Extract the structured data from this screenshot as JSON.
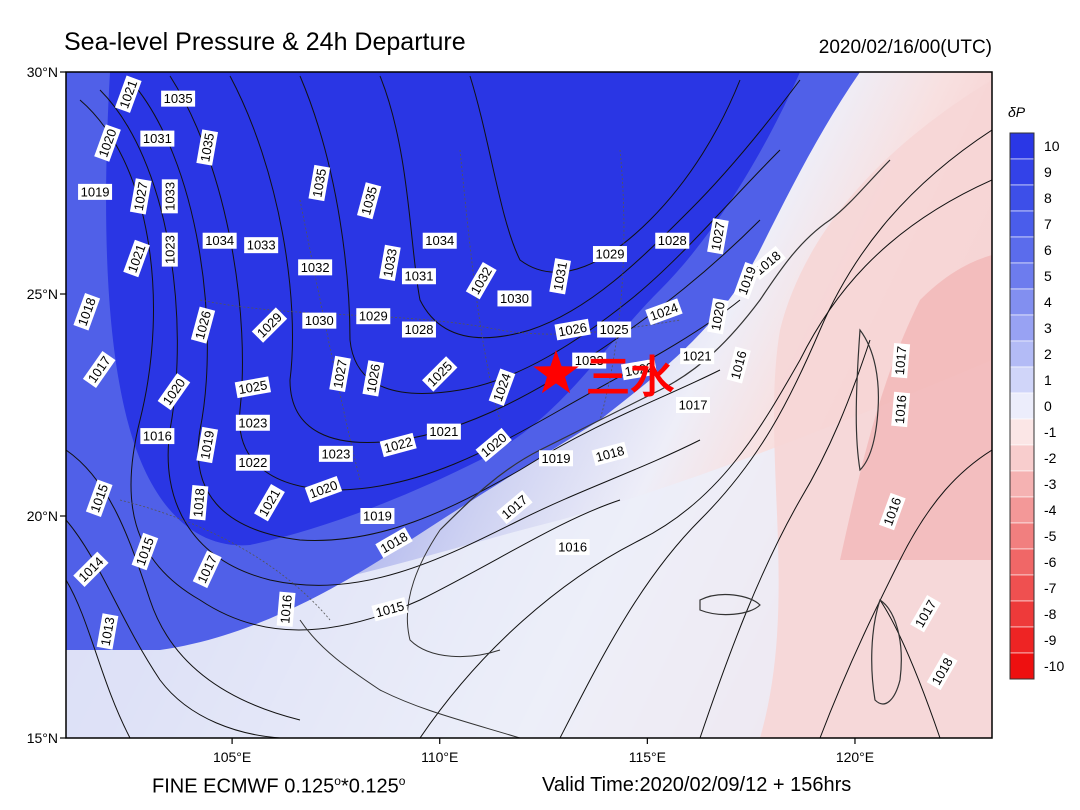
{
  "header": {
    "title": "Sea-level Pressure & 24h Departure",
    "datetime": "2020/02/16/00(UTC)"
  },
  "footer": {
    "model": "FINE ECMWF 0.125",
    "deg1": "o",
    "sep": "*0.125",
    "deg2": "o",
    "valid_time": "Valid Time:2020/02/09/12 + 156hrs"
  },
  "map": {
    "lon_range": [
      101,
      123.3
    ],
    "lat_range": [
      15,
      30
    ],
    "lat_ticks": [
      {
        "lat": 30,
        "label": "30°N"
      },
      {
        "lat": 25,
        "label": "25°N"
      },
      {
        "lat": 20,
        "label": "20°N"
      },
      {
        "lat": 15,
        "label": "15°N"
      }
    ],
    "lon_ticks": [
      {
        "lon": 105,
        "label": "105°E"
      },
      {
        "lon": 110,
        "label": "110°E"
      },
      {
        "lon": 115,
        "label": "115°E"
      },
      {
        "lon": 120,
        "label": "120°E"
      }
    ],
    "marker": {
      "lon": 112.8,
      "lat": 23.2,
      "label": "三水",
      "color": "#ff0000",
      "icon": "star-icon"
    },
    "isobar_labels": [
      {
        "t": "1021",
        "lon": 102.5,
        "lat": 29.5,
        "rot": -70
      },
      {
        "t": "1035",
        "lon": 103.7,
        "lat": 29.4,
        "rot": 0
      },
      {
        "t": "1020",
        "lon": 102.0,
        "lat": 28.4,
        "rot": -70
      },
      {
        "t": "1031",
        "lon": 103.2,
        "lat": 28.5,
        "rot": 0
      },
      {
        "t": "1035",
        "lon": 104.4,
        "lat": 28.3,
        "rot": -80
      },
      {
        "t": "1019",
        "lon": 101.7,
        "lat": 27.3,
        "rot": 0
      },
      {
        "t": "1027",
        "lon": 102.8,
        "lat": 27.2,
        "rot": -80
      },
      {
        "t": "1033",
        "lon": 103.5,
        "lat": 27.2,
        "rot": -90
      },
      {
        "t": "1035",
        "lon": 107.1,
        "lat": 27.5,
        "rot": -80
      },
      {
        "t": "1035",
        "lon": 108.3,
        "lat": 27.1,
        "rot": -75
      },
      {
        "t": "1023",
        "lon": 103.5,
        "lat": 26.0,
        "rot": -90
      },
      {
        "t": "1034",
        "lon": 104.7,
        "lat": 26.2,
        "rot": 0
      },
      {
        "t": "1033",
        "lon": 105.7,
        "lat": 26.1,
        "rot": 0
      },
      {
        "t": "1034",
        "lon": 110.0,
        "lat": 26.2,
        "rot": 0
      },
      {
        "t": "1021",
        "lon": 102.7,
        "lat": 25.8,
        "rot": -70
      },
      {
        "t": "1032",
        "lon": 107.0,
        "lat": 25.6,
        "rot": 0
      },
      {
        "t": "1033",
        "lon": 108.8,
        "lat": 25.7,
        "rot": -80
      },
      {
        "t": "1031",
        "lon": 109.5,
        "lat": 25.4,
        "rot": 0
      },
      {
        "t": "1032",
        "lon": 111.0,
        "lat": 25.3,
        "rot": -60
      },
      {
        "t": "1031",
        "lon": 112.9,
        "lat": 25.4,
        "rot": -80
      },
      {
        "t": "1029",
        "lon": 114.1,
        "lat": 25.9,
        "rot": 0
      },
      {
        "t": "1028",
        "lon": 115.6,
        "lat": 26.2,
        "rot": 0
      },
      {
        "t": "1027",
        "lon": 116.7,
        "lat": 26.3,
        "rot": -80
      },
      {
        "t": "1018",
        "lon": 117.9,
        "lat": 25.7,
        "rot": -40
      },
      {
        "t": "1019",
        "lon": 117.4,
        "lat": 25.3,
        "rot": -70
      },
      {
        "t": "1018",
        "lon": 101.5,
        "lat": 24.6,
        "rot": -70
      },
      {
        "t": "1026",
        "lon": 104.3,
        "lat": 24.3,
        "rot": -75
      },
      {
        "t": "1029",
        "lon": 105.9,
        "lat": 24.3,
        "rot": -45
      },
      {
        "t": "1030",
        "lon": 107.1,
        "lat": 24.4,
        "rot": 0
      },
      {
        "t": "1029",
        "lon": 108.4,
        "lat": 24.5,
        "rot": 0
      },
      {
        "t": "1028",
        "lon": 109.5,
        "lat": 24.2,
        "rot": 0
      },
      {
        "t": "1030",
        "lon": 111.8,
        "lat": 24.9,
        "rot": 0
      },
      {
        "t": "1026",
        "lon": 113.2,
        "lat": 24.2,
        "rot": -10
      },
      {
        "t": "1025",
        "lon": 114.2,
        "lat": 24.2,
        "rot": 0
      },
      {
        "t": "1024",
        "lon": 115.4,
        "lat": 24.6,
        "rot": -20
      },
      {
        "t": "1020",
        "lon": 116.7,
        "lat": 24.5,
        "rot": -80
      },
      {
        "t": "1023",
        "lon": 113.6,
        "lat": 23.5,
        "rot": 0
      },
      {
        "t": "1022",
        "lon": 114.8,
        "lat": 23.3,
        "rot": -10
      },
      {
        "t": "1021",
        "lon": 116.2,
        "lat": 23.6,
        "rot": 0
      },
      {
        "t": "1016",
        "lon": 117.2,
        "lat": 23.4,
        "rot": -75
      },
      {
        "t": "1017",
        "lon": 101.8,
        "lat": 23.3,
        "rot": -55
      },
      {
        "t": "1020",
        "lon": 103.6,
        "lat": 22.8,
        "rot": -55
      },
      {
        "t": "1025",
        "lon": 105.5,
        "lat": 22.9,
        "rot": -10
      },
      {
        "t": "1027",
        "lon": 107.6,
        "lat": 23.2,
        "rot": -80
      },
      {
        "t": "1026",
        "lon": 108.4,
        "lat": 23.1,
        "rot": -80
      },
      {
        "t": "1025",
        "lon": 110.0,
        "lat": 23.2,
        "rot": -45
      },
      {
        "t": "1024",
        "lon": 111.5,
        "lat": 22.9,
        "rot": -70
      },
      {
        "t": "1017",
        "lon": 116.1,
        "lat": 22.5,
        "rot": 0
      },
      {
        "t": "1017",
        "lon": 121.1,
        "lat": 23.5,
        "rot": -85
      },
      {
        "t": "1016",
        "lon": 121.1,
        "lat": 22.4,
        "rot": -85
      },
      {
        "t": "1016",
        "lon": 103.2,
        "lat": 21.8,
        "rot": 0
      },
      {
        "t": "1019",
        "lon": 104.4,
        "lat": 21.6,
        "rot": -80
      },
      {
        "t": "1023",
        "lon": 105.5,
        "lat": 22.1,
        "rot": 0
      },
      {
        "t": "1022",
        "lon": 105.5,
        "lat": 21.2,
        "rot": 0
      },
      {
        "t": "1023",
        "lon": 107.5,
        "lat": 21.4,
        "rot": 0
      },
      {
        "t": "1022",
        "lon": 109.0,
        "lat": 21.6,
        "rot": -15
      },
      {
        "t": "1021",
        "lon": 110.1,
        "lat": 21.9,
        "rot": 0
      },
      {
        "t": "1020",
        "lon": 111.3,
        "lat": 21.6,
        "rot": -40
      },
      {
        "t": "1019",
        "lon": 112.8,
        "lat": 21.3,
        "rot": 0
      },
      {
        "t": "1018",
        "lon": 114.1,
        "lat": 21.4,
        "rot": -15
      },
      {
        "t": "1015",
        "lon": 101.8,
        "lat": 20.4,
        "rot": -70
      },
      {
        "t": "1018",
        "lon": 104.2,
        "lat": 20.3,
        "rot": -85
      },
      {
        "t": "1021",
        "lon": 105.9,
        "lat": 20.3,
        "rot": -60
      },
      {
        "t": "1020",
        "lon": 107.2,
        "lat": 20.6,
        "rot": -20
      },
      {
        "t": "1019",
        "lon": 108.5,
        "lat": 20.0,
        "rot": 0
      },
      {
        "t": "1017",
        "lon": 111.8,
        "lat": 20.2,
        "rot": -40
      },
      {
        "t": "1016",
        "lon": 120.9,
        "lat": 20.1,
        "rot": -70
      },
      {
        "t": "1015",
        "lon": 102.9,
        "lat": 19.2,
        "rot": -70
      },
      {
        "t": "1018",
        "lon": 108.9,
        "lat": 19.4,
        "rot": -30
      },
      {
        "t": "1016",
        "lon": 113.2,
        "lat": 19.3,
        "rot": 0
      },
      {
        "t": "1014",
        "lon": 101.6,
        "lat": 18.8,
        "rot": -45
      },
      {
        "t": "1017",
        "lon": 104.4,
        "lat": 18.8,
        "rot": -65
      },
      {
        "t": "1016",
        "lon": 106.3,
        "lat": 17.9,
        "rot": -85
      },
      {
        "t": "1015",
        "lon": 108.8,
        "lat": 17.9,
        "rot": -15
      },
      {
        "t": "1013",
        "lon": 102.0,
        "lat": 17.4,
        "rot": -80
      },
      {
        "t": "1017",
        "lon": 121.7,
        "lat": 17.8,
        "rot": -60
      },
      {
        "t": "1018",
        "lon": 122.1,
        "lat": 16.5,
        "rot": -60
      }
    ]
  },
  "colorbar": {
    "symbol": "δP",
    "levels": [
      {
        "label": "10",
        "color": "#2a37e6"
      },
      {
        "label": "9",
        "color": "#3342e8"
      },
      {
        "label": "8",
        "color": "#3d4fe9"
      },
      {
        "label": "7",
        "color": "#4a5deb"
      },
      {
        "label": "6",
        "color": "#5b6cec"
      },
      {
        "label": "5",
        "color": "#6d7cee"
      },
      {
        "label": "4",
        "color": "#828ff0"
      },
      {
        "label": "3",
        "color": "#98a2f3"
      },
      {
        "label": "2",
        "color": "#b3bbf6"
      },
      {
        "label": "1",
        "color": "#d0d5f9"
      },
      {
        "label": "0",
        "color": "#ecedfb"
      },
      {
        "label": "-1",
        "color": "#fbe6e6"
      },
      {
        "label": "-2",
        "color": "#f8cdcd"
      },
      {
        "label": "-3",
        "color": "#f5b2b2"
      },
      {
        "label": "-4",
        "color": "#f39898"
      },
      {
        "label": "-5",
        "color": "#f17f7f"
      },
      {
        "label": "-6",
        "color": "#f06767"
      },
      {
        "label": "-7",
        "color": "#ef5050"
      },
      {
        "label": "-8",
        "color": "#ee3a3a"
      },
      {
        "label": "-9",
        "color": "#ee2424"
      },
      {
        "label": "-10",
        "color": "#ee1010"
      }
    ]
  }
}
